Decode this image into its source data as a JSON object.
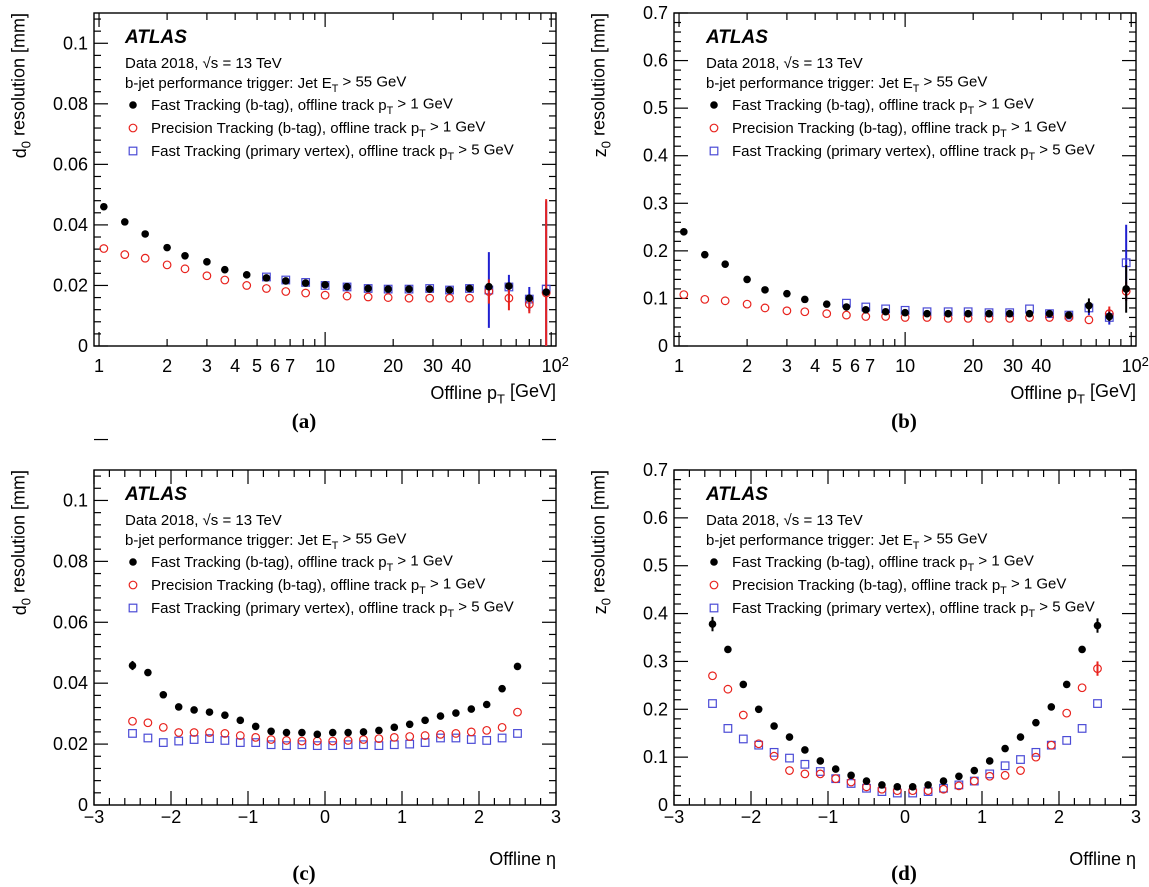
{
  "atlas_label": "ATLAS",
  "info_line1": "Data 2018, √s = 13 TeV",
  "info_line2": "b-jet performance trigger: Jet E_T > 55 GeV",
  "legend": [
    {
      "text": "Fast Tracking (b-tag), offline track p_T > 1 GeV",
      "marker": "filled-circle",
      "color": "#000000"
    },
    {
      "text": "Precision Tracking (b-tag), offline track p_T > 1 GeV",
      "marker": "open-circle",
      "color": "#e8231e"
    },
    {
      "text": "Fast Tracking (primary vertex), offline track p_T > 5 GeV",
      "marker": "open-square",
      "color": "#4b4bd6"
    }
  ],
  "colors": {
    "fast_btag": "#000000",
    "precision_btag": "#e8231e",
    "fast_pv": "#4b4bd6",
    "err_fast_pv": "#1f1fd0"
  },
  "chart_data": [
    {
      "panel": "(a)",
      "type": "scatter",
      "xscale": "log",
      "xlim": [
        0.95,
        105
      ],
      "ylim": [
        0,
        0.11
      ],
      "xlabel": "Offline p_T [GeV]",
      "ylabel": "d_0 resolution [mm]",
      "xticks": [
        "1",
        "2",
        "3",
        "4",
        "5",
        "6",
        "7",
        "10",
        "20",
        "30",
        "40",
        "10^2"
      ],
      "yticks": [
        "0",
        "0.02",
        "0.04",
        "0.06",
        "0.08",
        "0.1"
      ],
      "series": [
        {
          "x": [
            1.05,
            1.3,
            1.6,
            2.0,
            2.4,
            3.0,
            3.6,
            4.5,
            5.5,
            6.7,
            8.2,
            10,
            12.5,
            15.5,
            19,
            23.5,
            29,
            35.5,
            43.5,
            53,
            65,
            80,
            95
          ],
          "y": [
            0.046,
            0.041,
            0.037,
            0.0325,
            0.0298,
            0.0278,
            0.0252,
            0.0235,
            0.0225,
            0.0215,
            0.0208,
            0.0202,
            0.0196,
            0.019,
            0.0188,
            0.0188,
            0.0188,
            0.0185,
            0.019,
            0.0196,
            0.0198,
            0.0158,
            0.0178
          ],
          "err": [
            0,
            0,
            0,
            0,
            0,
            0,
            0,
            0,
            0,
            0,
            0,
            0,
            0,
            0,
            0,
            0,
            0,
            0,
            0,
            0,
            0,
            0,
            0
          ]
        },
        {
          "x": [
            1.05,
            1.3,
            1.6,
            2.0,
            2.4,
            3.0,
            3.6,
            4.5,
            5.5,
            6.7,
            8.2,
            10,
            12.5,
            15.5,
            19,
            23.5,
            29,
            35.5,
            43.5,
            53,
            65,
            80,
            95
          ],
          "y": [
            0.0322,
            0.0302,
            0.029,
            0.0268,
            0.0255,
            0.0232,
            0.0218,
            0.02,
            0.019,
            0.018,
            0.0175,
            0.0168,
            0.0165,
            0.0162,
            0.016,
            0.0158,
            0.0158,
            0.0158,
            0.0158,
            0.018,
            0.0158,
            0.0138,
            0.0175
          ],
          "err": [
            0,
            0,
            0,
            0,
            0,
            0,
            0,
            0,
            0,
            0,
            0,
            0,
            0,
            0,
            0,
            0,
            0,
            0,
            0,
            0.004,
            0.004,
            0.003,
            0.031
          ]
        },
        {
          "x": [
            5.5,
            6.7,
            8.2,
            10,
            12.5,
            15.5,
            19,
            23.5,
            29,
            35.5,
            43.5,
            53,
            65,
            80,
            95
          ],
          "y": [
            0.0228,
            0.0218,
            0.021,
            0.02,
            0.0195,
            0.019,
            0.0188,
            0.0188,
            0.019,
            0.0185,
            0.019,
            0.0185,
            0.0195,
            0.0155,
            0.0188
          ],
          "err": [
            0,
            0,
            0,
            0,
            0,
            0,
            0,
            0,
            0,
            0,
            0,
            0.0125,
            0.004,
            0.004,
            0.029
          ]
        }
      ]
    },
    {
      "panel": "(b)",
      "type": "scatter",
      "xscale": "log",
      "xlim": [
        0.95,
        105
      ],
      "ylim": [
        0,
        0.7
      ],
      "xlabel": "Offline p_T [GeV]",
      "ylabel": "z_0 resolution [mm]",
      "xticks": [
        "1",
        "2",
        "3",
        "4",
        "5",
        "6",
        "7",
        "10",
        "20",
        "30",
        "40",
        "10^2"
      ],
      "yticks": [
        "0",
        "0.1",
        "0.2",
        "0.3",
        "0.4",
        "0.5",
        "0.6",
        "0.7"
      ],
      "series": [
        {
          "x": [
            1.05,
            1.3,
            1.6,
            2.0,
            2.4,
            3.0,
            3.6,
            4.5,
            5.5,
            6.7,
            8.2,
            10,
            12.5,
            15.5,
            19,
            23.5,
            29,
            35.5,
            43.5,
            53,
            65,
            80,
            95
          ],
          "y": [
            0.24,
            0.192,
            0.172,
            0.14,
            0.118,
            0.11,
            0.098,
            0.088,
            0.082,
            0.076,
            0.072,
            0.07,
            0.068,
            0.068,
            0.068,
            0.068,
            0.068,
            0.068,
            0.068,
            0.065,
            0.085,
            0.062,
            0.12
          ],
          "err": [
            0,
            0,
            0,
            0,
            0,
            0,
            0,
            0,
            0,
            0,
            0,
            0,
            0,
            0,
            0,
            0,
            0,
            0,
            0,
            0,
            0.015,
            0.01,
            0.05
          ]
        },
        {
          "x": [
            1.05,
            1.3,
            1.6,
            2.0,
            2.4,
            3.0,
            3.6,
            4.5,
            5.5,
            6.7,
            8.2,
            10,
            12.5,
            15.5,
            19,
            23.5,
            29,
            35.5,
            43.5,
            53,
            65,
            80,
            95
          ],
          "y": [
            0.108,
            0.098,
            0.095,
            0.088,
            0.08,
            0.074,
            0.072,
            0.068,
            0.065,
            0.062,
            0.062,
            0.06,
            0.06,
            0.058,
            0.058,
            0.058,
            0.058,
            0.06,
            0.06,
            0.06,
            0.055,
            0.068,
            0.115
          ],
          "err": [
            0,
            0,
            0,
            0,
            0,
            0,
            0,
            0,
            0,
            0,
            0,
            0,
            0,
            0,
            0,
            0,
            0,
            0,
            0,
            0,
            0,
            0.015,
            0.02
          ]
        },
        {
          "x": [
            5.5,
            6.7,
            8.2,
            10,
            12.5,
            15.5,
            19,
            23.5,
            29,
            35.5,
            43.5,
            53,
            65,
            80,
            95
          ],
          "y": [
            0.09,
            0.082,
            0.078,
            0.075,
            0.072,
            0.072,
            0.072,
            0.07,
            0.07,
            0.078,
            0.068,
            0.065,
            0.08,
            0.06,
            0.175
          ],
          "err": [
            0,
            0,
            0,
            0,
            0,
            0,
            0,
            0,
            0,
            0,
            0,
            0,
            0.015,
            0.015,
            0.08
          ]
        }
      ]
    },
    {
      "panel": "(c)",
      "type": "scatter",
      "xscale": "linear",
      "xlim": [
        -3,
        3
      ],
      "ylim": [
        0,
        0.11
      ],
      "xlabel": "Offline η",
      "ylabel": "d_0 resolution [mm]",
      "xticks": [
        "−3",
        "−2",
        "−1",
        "0",
        "1",
        "2",
        "3"
      ],
      "yticks": [
        "0",
        "0.02",
        "0.04",
        "0.06",
        "0.08",
        "0.1"
      ],
      "series": [
        {
          "x": [
            -2.5,
            -2.3,
            -2.1,
            -1.9,
            -1.7,
            -1.5,
            -1.3,
            -1.1,
            -0.9,
            -0.7,
            -0.5,
            -0.3,
            -0.1,
            0.1,
            0.3,
            0.5,
            0.7,
            0.9,
            1.1,
            1.3,
            1.5,
            1.7,
            1.9,
            2.1,
            2.3,
            2.5
          ],
          "y": [
            0.0458,
            0.0435,
            0.0362,
            0.0322,
            0.0312,
            0.0305,
            0.0295,
            0.0278,
            0.0258,
            0.0242,
            0.0238,
            0.0238,
            0.0232,
            0.0238,
            0.0238,
            0.024,
            0.0245,
            0.0255,
            0.0265,
            0.0278,
            0.0292,
            0.0302,
            0.0315,
            0.033,
            0.0382,
            0.0455
          ],
          "err": [
            0.0015,
            0,
            0,
            0,
            0,
            0,
            0,
            0,
            0,
            0,
            0,
            0,
            0,
            0,
            0,
            0,
            0,
            0,
            0,
            0,
            0,
            0,
            0,
            0,
            0,
            0
          ]
        },
        {
          "x": [
            -2.5,
            -2.3,
            -2.1,
            -1.9,
            -1.7,
            -1.5,
            -1.3,
            -1.1,
            -0.9,
            -0.7,
            -0.5,
            -0.3,
            -0.1,
            0.1,
            0.3,
            0.5,
            0.7,
            0.9,
            1.1,
            1.3,
            1.5,
            1.7,
            1.9,
            2.1,
            2.3,
            2.5
          ],
          "y": [
            0.0275,
            0.027,
            0.0255,
            0.0238,
            0.0238,
            0.0238,
            0.0235,
            0.0228,
            0.0222,
            0.0215,
            0.0212,
            0.021,
            0.021,
            0.021,
            0.0212,
            0.0215,
            0.0218,
            0.0222,
            0.0225,
            0.0228,
            0.0232,
            0.0235,
            0.024,
            0.0245,
            0.0255,
            0.0305
          ],
          "err": [
            0,
            0,
            0,
            0,
            0,
            0,
            0,
            0,
            0,
            0,
            0,
            0,
            0,
            0,
            0,
            0,
            0,
            0,
            0,
            0,
            0,
            0,
            0,
            0,
            0,
            0
          ]
        },
        {
          "x": [
            -2.5,
            -2.3,
            -2.1,
            -1.9,
            -1.7,
            -1.5,
            -1.3,
            -1.1,
            -0.9,
            -0.7,
            -0.5,
            -0.3,
            -0.1,
            0.1,
            0.3,
            0.5,
            0.7,
            0.9,
            1.1,
            1.3,
            1.5,
            1.7,
            1.9,
            2.1,
            2.3,
            2.5
          ],
          "y": [
            0.0235,
            0.022,
            0.0205,
            0.021,
            0.0215,
            0.0218,
            0.0212,
            0.0205,
            0.0205,
            0.0198,
            0.0195,
            0.0198,
            0.0195,
            0.0195,
            0.0198,
            0.0198,
            0.0195,
            0.0198,
            0.02,
            0.0205,
            0.022,
            0.022,
            0.0215,
            0.0212,
            0.022,
            0.0235
          ],
          "err": [
            0,
            0,
            0,
            0,
            0,
            0,
            0,
            0,
            0,
            0,
            0,
            0,
            0,
            0,
            0,
            0,
            0,
            0,
            0,
            0,
            0,
            0,
            0,
            0,
            0,
            0
          ]
        }
      ]
    },
    {
      "panel": "(d)",
      "type": "scatter",
      "xscale": "linear",
      "xlim": [
        -3,
        3
      ],
      "ylim": [
        0,
        0.7
      ],
      "xlabel": "Offline η",
      "ylabel": "z_0 resolution [mm]",
      "xticks": [
        "−3",
        "−2",
        "−1",
        "0",
        "1",
        "2",
        "3"
      ],
      "yticks": [
        "0",
        "0.1",
        "0.2",
        "0.3",
        "0.4",
        "0.5",
        "0.6",
        "0.7"
      ],
      "series": [
        {
          "x": [
            -2.5,
            -2.3,
            -2.1,
            -1.9,
            -1.7,
            -1.5,
            -1.3,
            -1.1,
            -0.9,
            -0.7,
            -0.5,
            -0.3,
            -0.1,
            0.1,
            0.3,
            0.5,
            0.7,
            0.9,
            1.1,
            1.3,
            1.5,
            1.7,
            1.9,
            2.1,
            2.3,
            2.5
          ],
          "y": [
            0.378,
            0.325,
            0.252,
            0.2,
            0.165,
            0.142,
            0.115,
            0.092,
            0.075,
            0.062,
            0.05,
            0.042,
            0.038,
            0.038,
            0.042,
            0.05,
            0.06,
            0.072,
            0.092,
            0.118,
            0.142,
            0.172,
            0.205,
            0.252,
            0.325,
            0.375
          ],
          "err": [
            0.015,
            0,
            0,
            0,
            0,
            0,
            0,
            0,
            0,
            0,
            0,
            0,
            0,
            0,
            0,
            0,
            0,
            0,
            0,
            0,
            0,
            0,
            0,
            0,
            0,
            0.015
          ]
        },
        {
          "x": [
            -2.5,
            -2.3,
            -2.1,
            -1.9,
            -1.7,
            -1.5,
            -1.3,
            -1.1,
            -0.9,
            -0.7,
            -0.5,
            -0.3,
            -0.1,
            0.1,
            0.3,
            0.5,
            0.7,
            0.9,
            1.1,
            1.3,
            1.5,
            1.7,
            1.9,
            2.1,
            2.3,
            2.5
          ],
          "y": [
            0.27,
            0.242,
            0.188,
            0.128,
            0.102,
            0.072,
            0.065,
            0.065,
            0.055,
            0.048,
            0.038,
            0.033,
            0.03,
            0.03,
            0.03,
            0.033,
            0.04,
            0.05,
            0.06,
            0.062,
            0.072,
            0.1,
            0.125,
            0.192,
            0.245,
            0.285
          ],
          "err": [
            0,
            0,
            0,
            0,
            0,
            0,
            0,
            0,
            0,
            0,
            0,
            0,
            0,
            0,
            0,
            0,
            0,
            0,
            0,
            0,
            0,
            0,
            0,
            0,
            0,
            0.015
          ]
        },
        {
          "x": [
            -2.5,
            -2.3,
            -2.1,
            -1.9,
            -1.7,
            -1.5,
            -1.3,
            -1.1,
            -0.9,
            -0.7,
            -0.5,
            -0.3,
            -0.1,
            0.1,
            0.3,
            0.5,
            0.7,
            0.9,
            1.1,
            1.3,
            1.5,
            1.7,
            1.9,
            2.1,
            2.3,
            2.5
          ],
          "y": [
            0.212,
            0.16,
            0.138,
            0.125,
            0.11,
            0.098,
            0.085,
            0.07,
            0.055,
            0.045,
            0.035,
            0.028,
            0.025,
            0.025,
            0.028,
            0.035,
            0.042,
            0.05,
            0.065,
            0.082,
            0.095,
            0.11,
            0.125,
            0.135,
            0.16,
            0.212
          ],
          "err": [
            0,
            0,
            0,
            0,
            0,
            0,
            0,
            0,
            0,
            0,
            0,
            0,
            0,
            0,
            0,
            0,
            0,
            0,
            0,
            0,
            0,
            0,
            0,
            0,
            0,
            0
          ]
        }
      ]
    }
  ]
}
